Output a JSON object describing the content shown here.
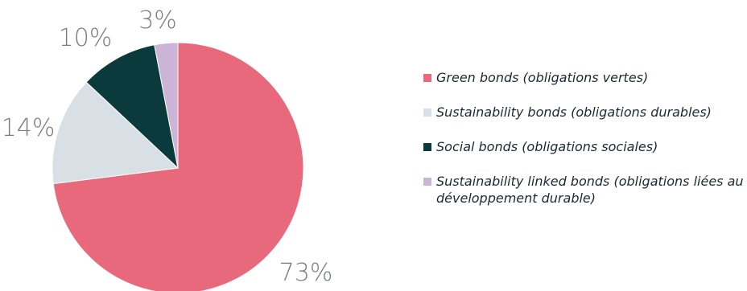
{
  "chart_data": {
    "type": "pie",
    "slices": [
      {
        "label": "Green bonds (obligations vertes)",
        "value": 73,
        "value_label": "73%",
        "color": "#e8697c"
      },
      {
        "label": "Sustainability bonds (obligations durables)",
        "value": 14,
        "value_label": "14%",
        "color": "#d8e0e6"
      },
      {
        "label": "Social bonds (obligations sociales)",
        "value": 10,
        "value_label": "10%",
        "color": "#0b3a3d"
      },
      {
        "label": "Sustainability linked bonds (obligations liées au développement durable)",
        "value": 3,
        "value_label": "3%",
        "color": "#cbb4d5"
      }
    ],
    "legend_placement": "right"
  }
}
